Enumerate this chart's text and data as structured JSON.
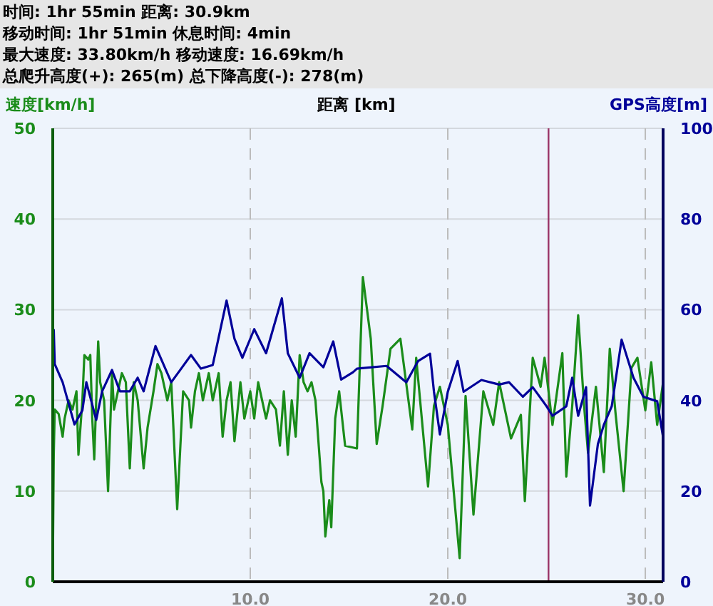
{
  "chart_data": {
    "type": "line",
    "annotations": [
      "时间: 1hr 55min  距离: 30.9km",
      "移动时间: 1hr 51min  休息时间: 4min",
      "最大速度: 33.80km/h  移动速度: 16.69km/h",
      "总爬升高度(+): 265(m)  总下降高度(-): 278(m)"
    ],
    "xlabel": "距离 [km]",
    "ylabel": "速度[km/h]",
    "y2label": "GPS高度[m]",
    "xlim": [
      0,
      30.9
    ],
    "xticks": [
      {
        "value": 10,
        "label": "10.0"
      },
      {
        "value": 20,
        "label": "20.0"
      },
      {
        "value": 30,
        "label": "30.0"
      }
    ],
    "ylim": [
      0,
      50
    ],
    "yticks": [
      0,
      10,
      20,
      30,
      40,
      50
    ],
    "y2lim": [
      0,
      100
    ],
    "y2ticks": [
      0,
      20,
      40,
      60,
      80,
      100
    ],
    "grid": true,
    "marker": "none",
    "line_style": "solid",
    "ref_lines": [
      {
        "axis": "x",
        "value": 25.1,
        "color": "#993366"
      }
    ],
    "series": [
      {
        "color": "#1a8c1a",
        "x": [
          0,
          0.05,
          0.1,
          0.3,
          0.5,
          0.6,
          0.8,
          1.0,
          1.2,
          1.3,
          1.5,
          1.6,
          1.8,
          1.9,
          2.0,
          2.1,
          2.3,
          2.4,
          2.6,
          2.8,
          3.0,
          3.1,
          3.3,
          3.5,
          3.7,
          3.9,
          4.1,
          4.3,
          4.6,
          4.8,
          5.1,
          5.3,
          5.5,
          5.8,
          6.0,
          6.3,
          6.6,
          6.9,
          7.0,
          7.2,
          7.4,
          7.6,
          7.9,
          8.1,
          8.4,
          8.6,
          8.8,
          9.0,
          9.2,
          9.5,
          9.7,
          10.0,
          10.2,
          10.4,
          10.6,
          10.8,
          11.0,
          11.3,
          11.5,
          11.7,
          11.9,
          12.1,
          12.3,
          12.5,
          12.7,
          12.9,
          13.1,
          13.3,
          13.6,
          13.7,
          13.8,
          14.0,
          14.1,
          14.3,
          14.5,
          14.8,
          15.4,
          15.7,
          16.1,
          16.4,
          16.7,
          17.1,
          17.6,
          18.2,
          18.4,
          19.0,
          19.3,
          19.6,
          20.0,
          20.6,
          20.9,
          21.3,
          21.8,
          22.3,
          22.6,
          23.2,
          23.7,
          23.9,
          24.3,
          24.7,
          24.9,
          25.3,
          25.8,
          26.0,
          26.3,
          26.6,
          26.9,
          27.1,
          27.5,
          27.9,
          28.2,
          28.5,
          28.9,
          29.3,
          29.6,
          30.0,
          30.3,
          30.6,
          30.9
        ],
        "values": [
          1,
          14,
          19,
          18.5,
          16,
          18,
          20,
          19,
          21,
          14,
          20,
          25,
          24.5,
          25,
          18,
          13.5,
          26.5,
          22,
          20,
          10,
          23,
          19,
          21,
          23,
          22,
          12.5,
          22,
          20,
          12.5,
          17,
          21,
          24,
          23,
          20,
          22,
          8,
          21,
          20,
          17,
          21,
          23,
          20,
          23,
          20,
          23,
          16,
          20,
          22,
          15.5,
          22,
          18,
          21,
          18,
          22,
          20,
          18,
          20,
          19,
          15,
          21,
          14,
          20,
          16,
          25,
          22,
          21,
          22,
          20,
          11,
          10,
          5,
          9,
          6,
          18,
          21,
          15,
          14.7,
          33.6,
          26.8,
          15.2,
          19.4,
          25.7,
          26.8,
          16.8,
          24.7,
          10.5,
          19.4,
          21.5,
          17.3,
          2.6,
          20.5,
          7.4,
          21,
          17.3,
          22,
          15.8,
          18.4,
          8.9,
          24.7,
          21.5,
          24.7,
          17.3,
          25.2,
          11.6,
          19.4,
          29.4,
          19.4,
          14.2,
          21.5,
          12.1,
          25.7,
          18.4,
          10,
          23.6,
          24.7,
          18.9,
          24.2,
          17.3,
          22
        ]
      },
      {
        "color": "#000099",
        "axis": "y2",
        "x": [
          0.05,
          0.1,
          0.5,
          1.1,
          1.5,
          1.7,
          2.2,
          2.5,
          3.0,
          3.4,
          3.9,
          4.3,
          4.6,
          5.2,
          5.7,
          6.0,
          6.5,
          7.0,
          7.5,
          8.1,
          8.8,
          9.2,
          9.6,
          10.2,
          10.8,
          11.6,
          11.9,
          12.5,
          13.0,
          13.7,
          14.2,
          14.6,
          15.2,
          15.4,
          16.9,
          17.9,
          18.5,
          19.1,
          19.3,
          19.6,
          20.0,
          20.5,
          20.8,
          21.7,
          22.6,
          23.1,
          23.8,
          24.3,
          25.0,
          25.3,
          26.0,
          26.3,
          26.6,
          27.0,
          27.2,
          27.6,
          27.9,
          28.3,
          28.8,
          29.4,
          29.9,
          30.6,
          30.9
        ],
        "values": [
          55.7,
          48,
          44,
          34.7,
          37.8,
          44,
          35.7,
          42,
          46.7,
          42,
          42,
          45,
          42,
          52,
          47,
          44,
          47,
          50,
          47,
          47.8,
          62,
          53.6,
          49.4,
          55.7,
          50.4,
          62.5,
          50.4,
          45,
          50.4,
          47.3,
          53,
          44.6,
          46.2,
          47,
          47.6,
          44,
          48.7,
          50.3,
          41.9,
          32.5,
          41.9,
          48.7,
          41.9,
          44.5,
          43.5,
          44,
          40.8,
          42.9,
          38.7,
          36.6,
          38.7,
          45,
          36.6,
          42.9,
          16.8,
          30.4,
          34.6,
          38.7,
          53.4,
          45,
          40.8,
          39.8,
          31.9
        ]
      }
    ]
  }
}
